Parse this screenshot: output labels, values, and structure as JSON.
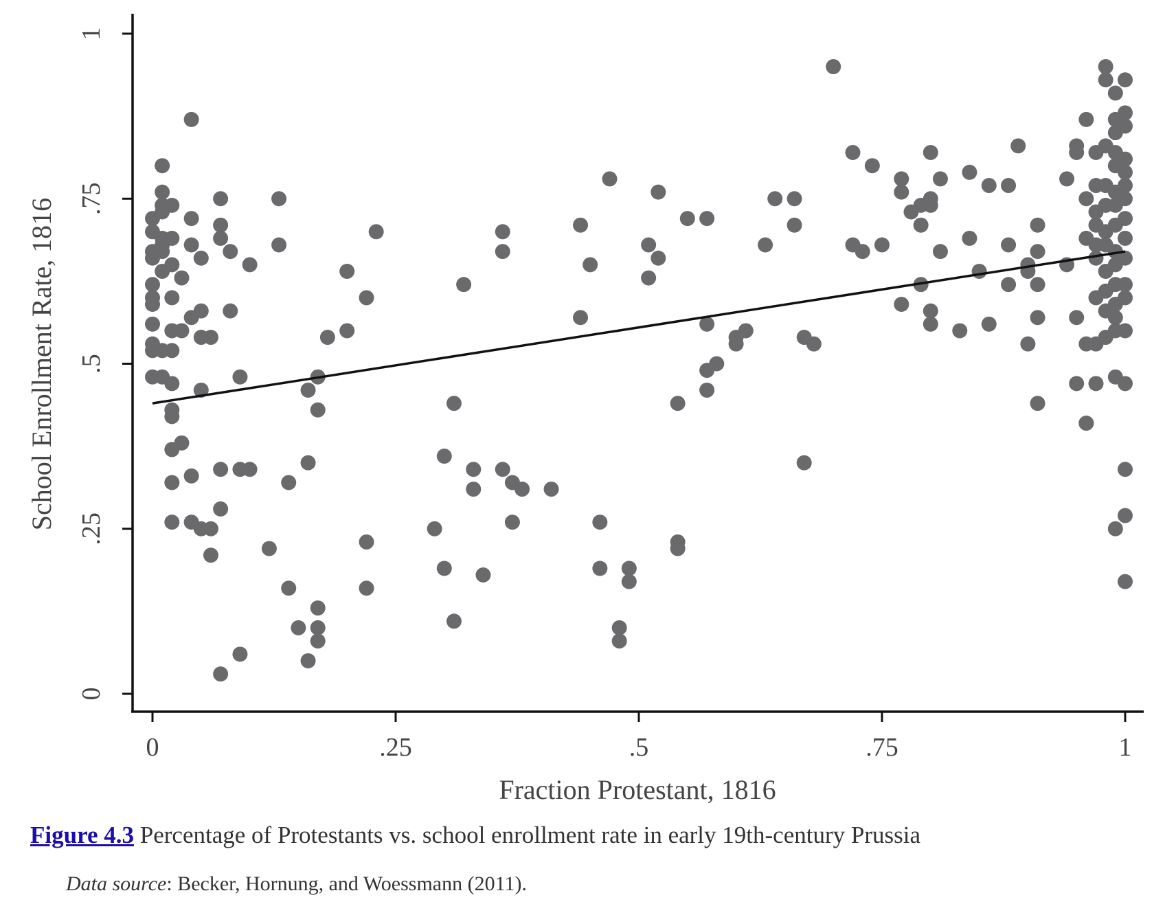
{
  "chart_data": {
    "type": "scatter",
    "xlabel": "Fraction Protestant, 1816",
    "ylabel": "School Enrollment Rate, 1816",
    "xlim": [
      0,
      1
    ],
    "ylim": [
      0,
      1
    ],
    "xticks": [
      0,
      0.25,
      0.5,
      0.75,
      1
    ],
    "xtick_labels": [
      "0",
      ".25",
      ".5",
      ".75",
      "1"
    ],
    "yticks": [
      0,
      0.25,
      0.5,
      0.75,
      1
    ],
    "ytick_labels": [
      "0",
      ".25",
      ".5",
      ".75",
      "1"
    ],
    "grid": false,
    "marker_color": "#6a6a6c",
    "fit_line": {
      "x": [
        0,
        1
      ],
      "y": [
        0.44,
        0.67
      ],
      "color": "#111111"
    },
    "points": [
      [
        0.0,
        0.72
      ],
      [
        0.0,
        0.7
      ],
      [
        0.0,
        0.67
      ],
      [
        0.0,
        0.66
      ],
      [
        0.0,
        0.62
      ],
      [
        0.0,
        0.6
      ],
      [
        0.0,
        0.59
      ],
      [
        0.0,
        0.53
      ],
      [
        0.0,
        0.52
      ],
      [
        0.0,
        0.48
      ],
      [
        0.01,
        0.76
      ],
      [
        0.01,
        0.74
      ],
      [
        0.01,
        0.73
      ],
      [
        0.01,
        0.69
      ],
      [
        0.01,
        0.68
      ],
      [
        0.01,
        0.67
      ],
      [
        0.01,
        0.64
      ],
      [
        0.0,
        0.56
      ],
      [
        0.01,
        0.52
      ],
      [
        0.01,
        0.48
      ],
      [
        0.01,
        0.8
      ],
      [
        0.02,
        0.74
      ],
      [
        0.02,
        0.69
      ],
      [
        0.02,
        0.65
      ],
      [
        0.02,
        0.6
      ],
      [
        0.02,
        0.55
      ],
      [
        0.02,
        0.52
      ],
      [
        0.02,
        0.47
      ],
      [
        0.02,
        0.43
      ],
      [
        0.02,
        0.42
      ],
      [
        0.03,
        0.38
      ],
      [
        0.02,
        0.37
      ],
      [
        0.02,
        0.32
      ],
      [
        0.02,
        0.26
      ],
      [
        0.04,
        0.87
      ],
      [
        0.04,
        0.72
      ],
      [
        0.04,
        0.68
      ],
      [
        0.03,
        0.63
      ],
      [
        0.04,
        0.57
      ],
      [
        0.03,
        0.55
      ],
      [
        0.05,
        0.54
      ],
      [
        0.05,
        0.66
      ],
      [
        0.05,
        0.58
      ],
      [
        0.05,
        0.46
      ],
      [
        0.04,
        0.33
      ],
      [
        0.04,
        0.26
      ],
      [
        0.05,
        0.25
      ],
      [
        0.06,
        0.21
      ],
      [
        0.06,
        0.54
      ],
      [
        0.07,
        0.28
      ],
      [
        0.06,
        0.25
      ],
      [
        0.07,
        0.03
      ],
      [
        0.07,
        0.75
      ],
      [
        0.07,
        0.71
      ],
      [
        0.07,
        0.69
      ],
      [
        0.08,
        0.67
      ],
      [
        0.08,
        0.58
      ],
      [
        0.09,
        0.48
      ],
      [
        0.07,
        0.34
      ],
      [
        0.09,
        0.34
      ],
      [
        0.1,
        0.34
      ],
      [
        0.1,
        0.65
      ],
      [
        0.09,
        0.06
      ],
      [
        0.12,
        0.22
      ],
      [
        0.13,
        0.68
      ],
      [
        0.13,
        0.75
      ],
      [
        0.14,
        0.32
      ],
      [
        0.14,
        0.16
      ],
      [
        0.15,
        0.1
      ],
      [
        0.16,
        0.46
      ],
      [
        0.16,
        0.35
      ],
      [
        0.17,
        0.48
      ],
      [
        0.17,
        0.43
      ],
      [
        0.17,
        0.13
      ],
      [
        0.17,
        0.1
      ],
      [
        0.17,
        0.08
      ],
      [
        0.16,
        0.05
      ],
      [
        0.18,
        0.54
      ],
      [
        0.2,
        0.64
      ],
      [
        0.2,
        0.55
      ],
      [
        0.22,
        0.6
      ],
      [
        0.22,
        0.23
      ],
      [
        0.22,
        0.16
      ],
      [
        0.23,
        0.7
      ],
      [
        0.29,
        0.25
      ],
      [
        0.3,
        0.36
      ],
      [
        0.3,
        0.19
      ],
      [
        0.31,
        0.44
      ],
      [
        0.32,
        0.62
      ],
      [
        0.31,
        0.11
      ],
      [
        0.33,
        0.34
      ],
      [
        0.33,
        0.31
      ],
      [
        0.34,
        0.18
      ],
      [
        0.36,
        0.7
      ],
      [
        0.36,
        0.67
      ],
      [
        0.36,
        0.34
      ],
      [
        0.37,
        0.32
      ],
      [
        0.38,
        0.31
      ],
      [
        0.37,
        0.26
      ],
      [
        0.41,
        0.31
      ],
      [
        0.44,
        0.71
      ],
      [
        0.45,
        0.65
      ],
      [
        0.44,
        0.57
      ],
      [
        0.46,
        0.26
      ],
      [
        0.46,
        0.19
      ],
      [
        0.47,
        0.78
      ],
      [
        0.48,
        0.1
      ],
      [
        0.48,
        0.08
      ],
      [
        0.49,
        0.19
      ],
      [
        0.49,
        0.17
      ],
      [
        0.51,
        0.68
      ],
      [
        0.51,
        0.63
      ],
      [
        0.52,
        0.76
      ],
      [
        0.52,
        0.66
      ],
      [
        0.54,
        0.44
      ],
      [
        0.54,
        0.23
      ],
      [
        0.54,
        0.22
      ],
      [
        0.55,
        0.72
      ],
      [
        0.57,
        0.72
      ],
      [
        0.57,
        0.56
      ],
      [
        0.58,
        0.5
      ],
      [
        0.57,
        0.49
      ],
      [
        0.57,
        0.46
      ],
      [
        0.6,
        0.53
      ],
      [
        0.6,
        0.54
      ],
      [
        0.61,
        0.55
      ],
      [
        0.63,
        0.68
      ],
      [
        0.64,
        0.75
      ],
      [
        0.66,
        0.75
      ],
      [
        0.66,
        0.71
      ],
      [
        0.67,
        0.35
      ],
      [
        0.67,
        0.54
      ],
      [
        0.68,
        0.53
      ],
      [
        0.7,
        0.95
      ],
      [
        0.72,
        0.82
      ],
      [
        0.72,
        0.68
      ],
      [
        0.73,
        0.67
      ],
      [
        0.74,
        0.8
      ],
      [
        0.75,
        0.68
      ],
      [
        0.77,
        0.76
      ],
      [
        0.77,
        0.78
      ],
      [
        0.78,
        0.73
      ],
      [
        0.77,
        0.59
      ],
      [
        0.79,
        0.71
      ],
      [
        0.79,
        0.74
      ],
      [
        0.79,
        0.62
      ],
      [
        0.8,
        0.82
      ],
      [
        0.8,
        0.75
      ],
      [
        0.81,
        0.78
      ],
      [
        0.8,
        0.74
      ],
      [
        0.81,
        0.67
      ],
      [
        0.8,
        0.58
      ],
      [
        0.8,
        0.56
      ],
      [
        0.84,
        0.79
      ],
      [
        0.84,
        0.69
      ],
      [
        0.83,
        0.55
      ],
      [
        0.85,
        0.64
      ],
      [
        0.86,
        0.56
      ],
      [
        0.86,
        0.77
      ],
      [
        0.88,
        0.77
      ],
      [
        0.88,
        0.68
      ],
      [
        0.88,
        0.62
      ],
      [
        0.89,
        0.83
      ],
      [
        0.9,
        0.65
      ],
      [
        0.9,
        0.53
      ],
      [
        0.9,
        0.64
      ],
      [
        0.91,
        0.71
      ],
      [
        0.91,
        0.67
      ],
      [
        0.91,
        0.62
      ],
      [
        0.91,
        0.57
      ],
      [
        0.91,
        0.44
      ],
      [
        0.94,
        0.78
      ],
      [
        0.94,
        0.65
      ],
      [
        0.95,
        0.83
      ],
      [
        0.95,
        0.82
      ],
      [
        0.95,
        0.57
      ],
      [
        0.96,
        0.87
      ],
      [
        0.96,
        0.75
      ],
      [
        0.96,
        0.69
      ],
      [
        0.95,
        0.47
      ],
      [
        0.96,
        0.41
      ],
      [
        0.96,
        0.41
      ],
      [
        0.96,
        0.53
      ],
      [
        0.97,
        0.82
      ],
      [
        0.97,
        0.77
      ],
      [
        0.97,
        0.73
      ],
      [
        0.97,
        0.71
      ],
      [
        0.97,
        0.68
      ],
      [
        0.97,
        0.66
      ],
      [
        0.97,
        0.6
      ],
      [
        0.97,
        0.53
      ],
      [
        0.97,
        0.47
      ],
      [
        0.98,
        0.95
      ],
      [
        0.98,
        0.93
      ],
      [
        0.98,
        0.83
      ],
      [
        0.98,
        0.77
      ],
      [
        0.98,
        0.74
      ],
      [
        0.98,
        0.7
      ],
      [
        0.98,
        0.68
      ],
      [
        0.98,
        0.64
      ],
      [
        0.98,
        0.61
      ],
      [
        0.98,
        0.58
      ],
      [
        0.98,
        0.54
      ],
      [
        0.99,
        0.91
      ],
      [
        0.99,
        0.87
      ],
      [
        0.99,
        0.85
      ],
      [
        0.99,
        0.82
      ],
      [
        0.99,
        0.8
      ],
      [
        0.99,
        0.76
      ],
      [
        0.99,
        0.74
      ],
      [
        0.99,
        0.71
      ],
      [
        0.99,
        0.67
      ],
      [
        0.99,
        0.65
      ],
      [
        0.99,
        0.62
      ],
      [
        0.99,
        0.59
      ],
      [
        0.99,
        0.57
      ],
      [
        0.99,
        0.55
      ],
      [
        0.99,
        0.48
      ],
      [
        0.99,
        0.25
      ],
      [
        1.0,
        0.93
      ],
      [
        1.0,
        0.88
      ],
      [
        1.0,
        0.86
      ],
      [
        1.0,
        0.81
      ],
      [
        1.0,
        0.79
      ],
      [
        1.0,
        0.77
      ],
      [
        1.0,
        0.75
      ],
      [
        1.0,
        0.72
      ],
      [
        1.0,
        0.69
      ],
      [
        1.0,
        0.66
      ],
      [
        1.0,
        0.62
      ],
      [
        1.0,
        0.6
      ],
      [
        1.0,
        0.55
      ],
      [
        1.0,
        0.47
      ],
      [
        1.0,
        0.34
      ],
      [
        1.0,
        0.27
      ],
      [
        1.0,
        0.17
      ]
    ]
  },
  "caption": {
    "figure_label": "Figure 4.3",
    "text": " Percentage of Protestants vs. school enrollment rate in early 19th-century Prussia",
    "source_label": "Data source",
    "source_text": ": Becker, Hornung, and Woessmann (2011)."
  }
}
